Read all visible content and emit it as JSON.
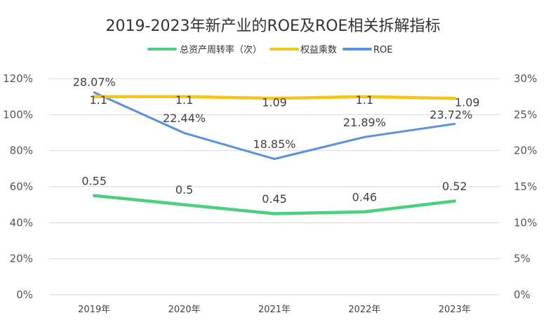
{
  "chart_data": {
    "type": "line",
    "title": "2019-2023年新产业的ROE及ROE相关拆解指标",
    "categories": [
      "2019年",
      "2020年",
      "2021年",
      "2022年",
      "2023年"
    ],
    "left_axis": {
      "ylim": [
        0,
        120
      ],
      "ticks": [
        0,
        20,
        40,
        60,
        80,
        100,
        120
      ],
      "tick_labels": [
        "0%",
        "20%",
        "40%",
        "60%",
        "80%",
        "100%",
        "120%"
      ]
    },
    "right_axis": {
      "ylim": [
        0,
        30
      ],
      "ticks": [
        0,
        5,
        10,
        15,
        20,
        25,
        30
      ],
      "tick_labels": [
        "0%",
        "5%",
        "10%",
        "15%",
        "20%",
        "25%",
        "30%"
      ]
    },
    "series": [
      {
        "name": "总资产周转率（次）",
        "axis": "left",
        "scale": 100,
        "color": "#4cd080",
        "values": [
          0.55,
          0.5,
          0.45,
          0.46,
          0.52
        ],
        "labels": [
          "0.55",
          "0.5",
          "0.45",
          "0.46",
          "0.52"
        ]
      },
      {
        "name": "权益乘数",
        "axis": "left",
        "scale": 100,
        "color": "#f5c518",
        "values": [
          1.1,
          1.1,
          1.09,
          1.1,
          1.09
        ],
        "labels": [
          "1.1",
          "1.1",
          "1.09",
          "1.1",
          "1.09"
        ]
      },
      {
        "name": "ROE",
        "axis": "right",
        "scale": 1,
        "color": "#5b8fe0",
        "values": [
          28.07,
          22.44,
          18.85,
          21.89,
          23.72
        ],
        "labels": [
          "28.07%",
          "22.44%",
          "18.85%",
          "21.89%",
          "23.72%"
        ]
      }
    ],
    "grid": true,
    "legend_position": "top-center"
  }
}
